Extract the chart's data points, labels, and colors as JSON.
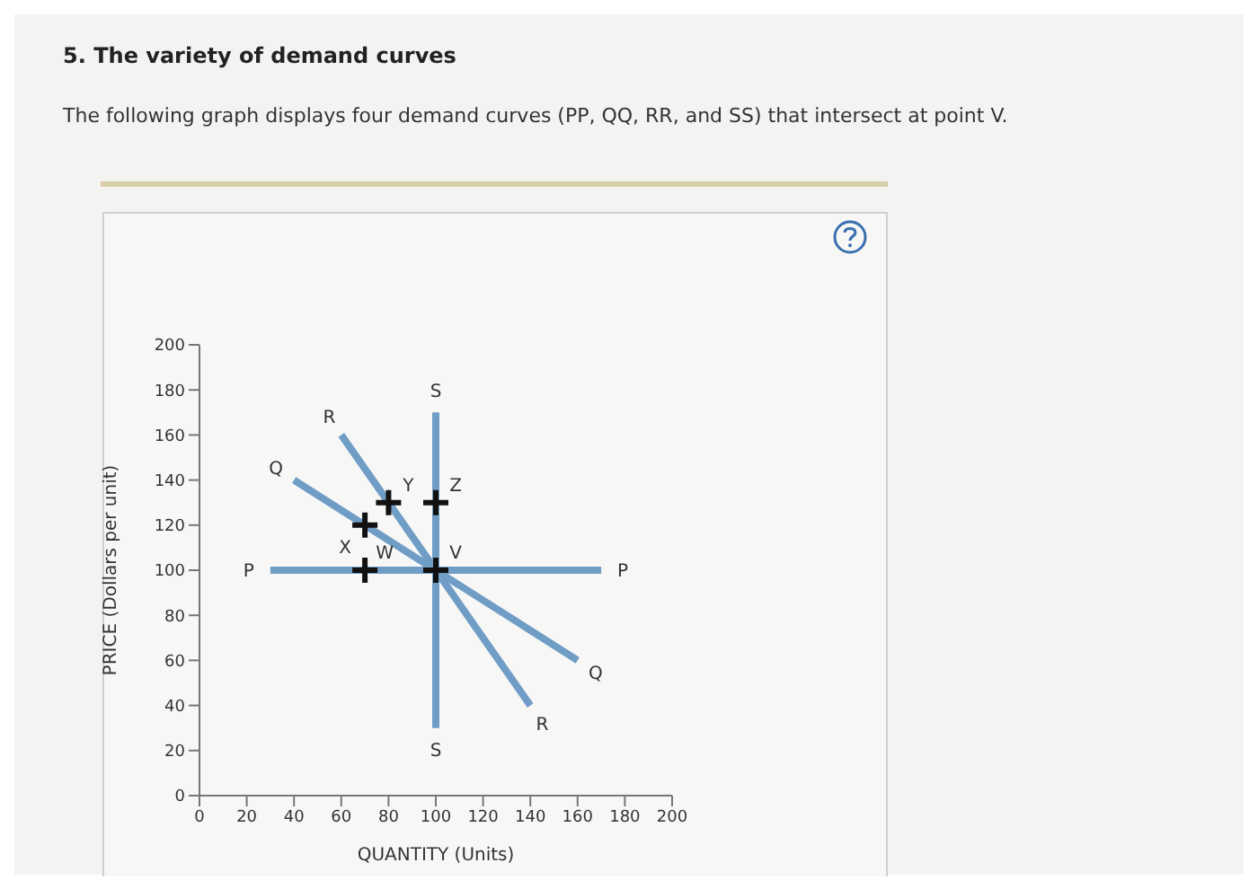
{
  "chart_data": {
    "type": "line",
    "title": "5. The variety of demand curves",
    "subtitle": "The following graph displays four demand curves (PP, QQ, RR, and SS) that intersect at point V.",
    "xlabel": "QUANTITY (Units)",
    "ylabel": "PRICE (Dollars per unit)",
    "series": [
      {
        "color": "#6f9dc6",
        "x": [
          30,
          170
        ],
        "values": [
          100,
          100
        ]
      },
      {
        "color": "#6f9dc6",
        "x": [
          40,
          160
        ],
        "values": [
          140,
          60
        ]
      },
      {
        "color": "#6f9dc6",
        "x": [
          60,
          140
        ],
        "values": [
          160,
          40
        ]
      },
      {
        "color": "#6f9dc6",
        "x": [
          100,
          100
        ],
        "values": [
          170,
          30
        ]
      },
      {
        "type": "scatter",
        "color": "#111111",
        "marker": "cross",
        "x": [
          70,
          80,
          100,
          70,
          100
        ],
        "values": [
          120,
          130,
          130,
          100,
          100
        ]
      }
    ],
    "annotations": [
      {
        "text": "P",
        "x": 30,
        "y": 100
      },
      {
        "text": "P",
        "x": 170,
        "y": 100
      },
      {
        "text": "Q",
        "x": 40,
        "y": 140
      },
      {
        "text": "Q",
        "x": 160,
        "y": 60
      },
      {
        "text": "R",
        "x": 60,
        "y": 160
      },
      {
        "text": "R",
        "x": 140,
        "y": 40
      },
      {
        "text": "S",
        "x": 100,
        "y": 170
      },
      {
        "text": "S",
        "x": 100,
        "y": 30
      },
      {
        "text": "X",
        "x": 70,
        "y": 120
      },
      {
        "text": "Y",
        "x": 80,
        "y": 130
      },
      {
        "text": "Z",
        "x": 100,
        "y": 130
      },
      {
        "text": "W",
        "x": 70,
        "y": 100
      },
      {
        "text": "V",
        "x": 100,
        "y": 100
      }
    ],
    "xlim": [
      0,
      200
    ],
    "ylim": [
      0,
      200
    ],
    "xticks": [
      0,
      20,
      40,
      60,
      80,
      100,
      120,
      140,
      160,
      180,
      200
    ],
    "yticks": [
      0,
      20,
      40,
      60,
      80,
      100,
      120,
      140,
      160,
      180,
      200
    ],
    "grid": false,
    "legend": false
  }
}
